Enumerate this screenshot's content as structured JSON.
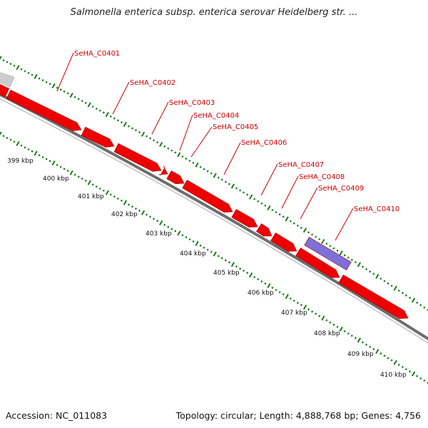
{
  "title": "Salmonella enterica subsp. enterica serovar Heidelberg str. ...",
  "footer": {
    "accession": "Accession: NC_011083",
    "summary": "Topology: circular; Length: 4,888,768 bp; Genes: 4,756"
  },
  "colors": {
    "gene": "#ee0000",
    "gene_highlight": "#7f6fd8",
    "gene_gray": "#cccccc",
    "label": "#cc0000",
    "backbone": "#808080",
    "ticks": "#1a7a1a"
  },
  "gene_labels": [
    {
      "id": "gene-label-seha-c0401",
      "text": "SeHA_C0401"
    },
    {
      "id": "gene-label-seha-c0402",
      "text": "SeHA_C0402"
    },
    {
      "id": "gene-label-seha-c0403",
      "text": "SeHA_C0403"
    },
    {
      "id": "gene-label-seha-c0404",
      "text": "SeHA_C0404"
    },
    {
      "id": "gene-label-seha-c0405",
      "text": "SeHA_C0405"
    },
    {
      "id": "gene-label-seha-c0406",
      "text": "SeHA_C0406"
    },
    {
      "id": "gene-label-seha-c0407",
      "text": "SeHA_C0407"
    },
    {
      "id": "gene-label-seha-c0408",
      "text": "SeHA_C0408"
    },
    {
      "id": "gene-label-seha-c0409",
      "text": "SeHA_C0409"
    },
    {
      "id": "gene-label-seha-c0410",
      "text": "SeHA_C0410"
    }
  ],
  "kbp_labels": [
    "399 kbp",
    "400 kbp",
    "401 kbp",
    "402 kbp",
    "403 kbp",
    "404 kbp",
    "405 kbp",
    "406 kbp",
    "407 kbp",
    "408 kbp",
    "409 kbp",
    "410 kbp"
  ]
}
